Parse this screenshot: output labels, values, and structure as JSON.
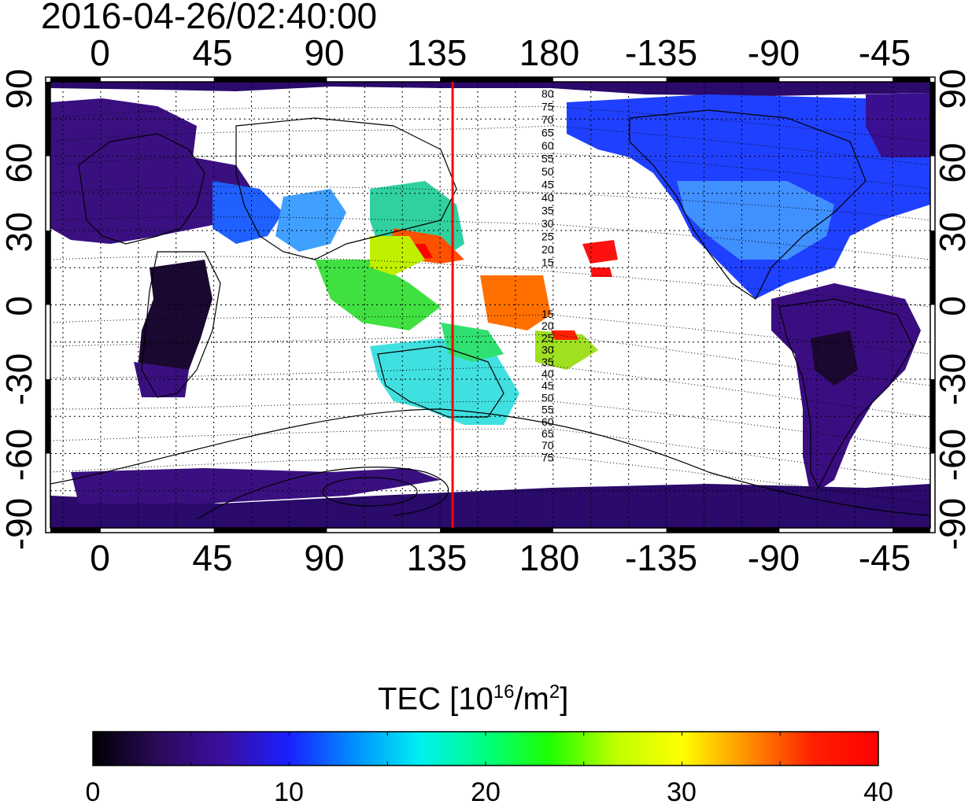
{
  "timestamp": "2016-04-26/02:40:00",
  "map": {
    "lon_ticks": [
      "0",
      "45",
      "90",
      "135",
      "180",
      "-135",
      "-90",
      "-45"
    ],
    "lat_ticks": [
      "90",
      "60",
      "30",
      "0",
      "-30",
      "-60",
      "-90"
    ],
    "lon_tick_values": [
      0,
      45,
      90,
      135,
      180,
      -135,
      -90,
      -45
    ],
    "lat_tick_values": [
      90,
      60,
      30,
      0,
      -30,
      -60,
      -90
    ],
    "lon_range": [
      -20,
      330
    ],
    "lat_range": [
      -90,
      90
    ],
    "meridian_marker_lon": 140,
    "meridian_marker_color": "#ff0000",
    "contour_labels_north": [
      "80",
      "75",
      "70",
      "65",
      "60",
      "55",
      "50",
      "45",
      "40",
      "35",
      "30",
      "25",
      "20",
      "15"
    ],
    "contour_labels_south": [
      "15",
      "20",
      "25",
      "30",
      "35",
      "40",
      "45",
      "50",
      "55",
      "60",
      "65",
      "70",
      "75"
    ]
  },
  "colorbar": {
    "title_main": "TEC  [10",
    "title_exp": "16",
    "title_unit": "/m",
    "title_unit_exp": "2",
    "title_close": "]",
    "min": 0,
    "max": 40,
    "labels": [
      "0",
      "10",
      "20",
      "30",
      "40"
    ],
    "label_values": [
      0,
      10,
      20,
      30,
      40
    ],
    "colors": [
      "#000000",
      "#2a0a5a",
      "#3a0ea0",
      "#1a20ff",
      "#0090ff",
      "#00f0f0",
      "#00ff80",
      "#20ff00",
      "#c0ff00",
      "#ffff00",
      "#ff9000",
      "#ff2000",
      "#ff0000"
    ]
  }
}
